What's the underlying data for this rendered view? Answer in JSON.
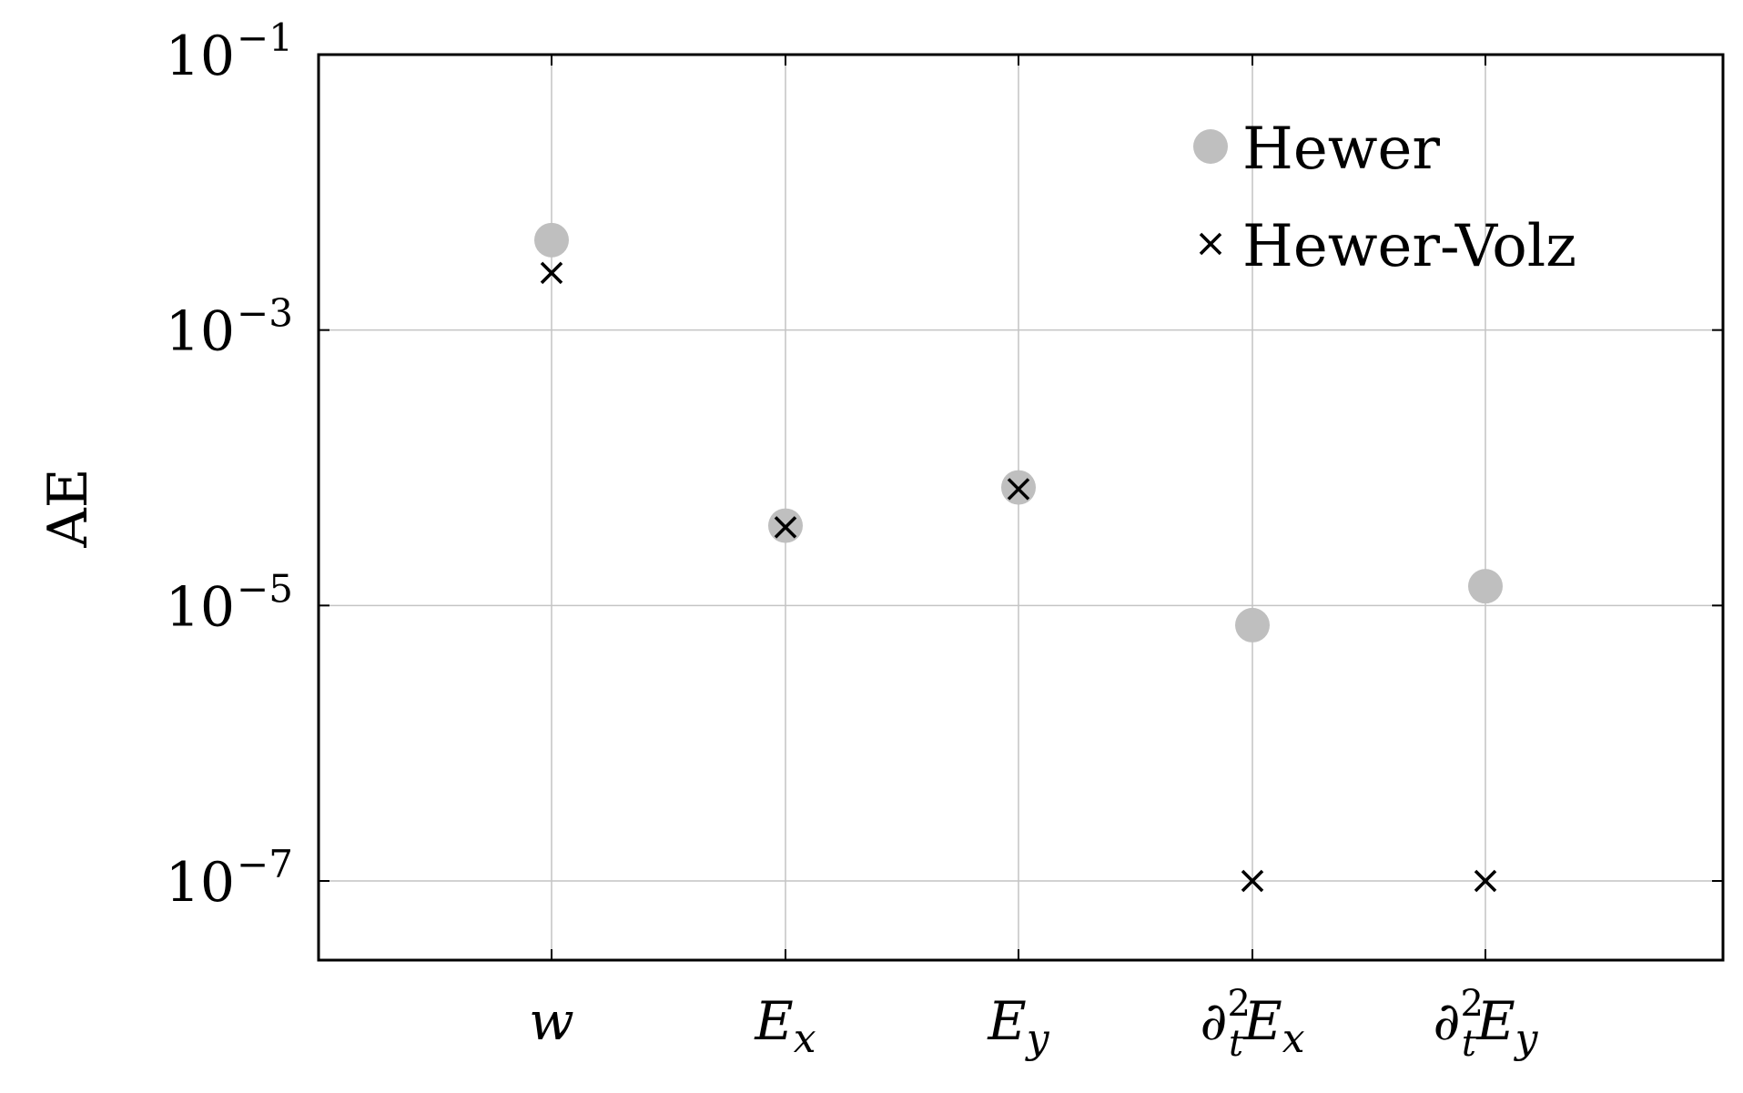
{
  "chart_data": {
    "type": "scatter",
    "ylabel": "AE",
    "y_scale": "log",
    "ylim_exponents": [
      -7.6,
      -1
    ],
    "grid": true,
    "legend_position": "top-right",
    "categories": [
      "w",
      "E_x",
      "E_y",
      "∂_t^2 E_x",
      "∂_t^2 E_y"
    ],
    "y_ticks": [
      {
        "exp": -1,
        "label": "10",
        "sup": "−1"
      },
      {
        "exp": -3,
        "label": "10",
        "sup": "−3"
      },
      {
        "exp": -5,
        "label": "10",
        "sup": "−5"
      },
      {
        "exp": -7,
        "label": "10",
        "sup": "−7"
      }
    ],
    "series": [
      {
        "name": "Hewer",
        "marker": "circle",
        "color": "#bfbfbf",
        "values": [
          0.0045,
          3.8e-05,
          7.2e-05,
          7.2e-06,
          1.38e-05
        ]
      },
      {
        "name": "Hewer-Volz",
        "marker": "x",
        "color": "#000000",
        "values": [
          0.0026,
          3.7e-05,
          7e-05,
          1e-07,
          1e-07
        ]
      }
    ]
  }
}
